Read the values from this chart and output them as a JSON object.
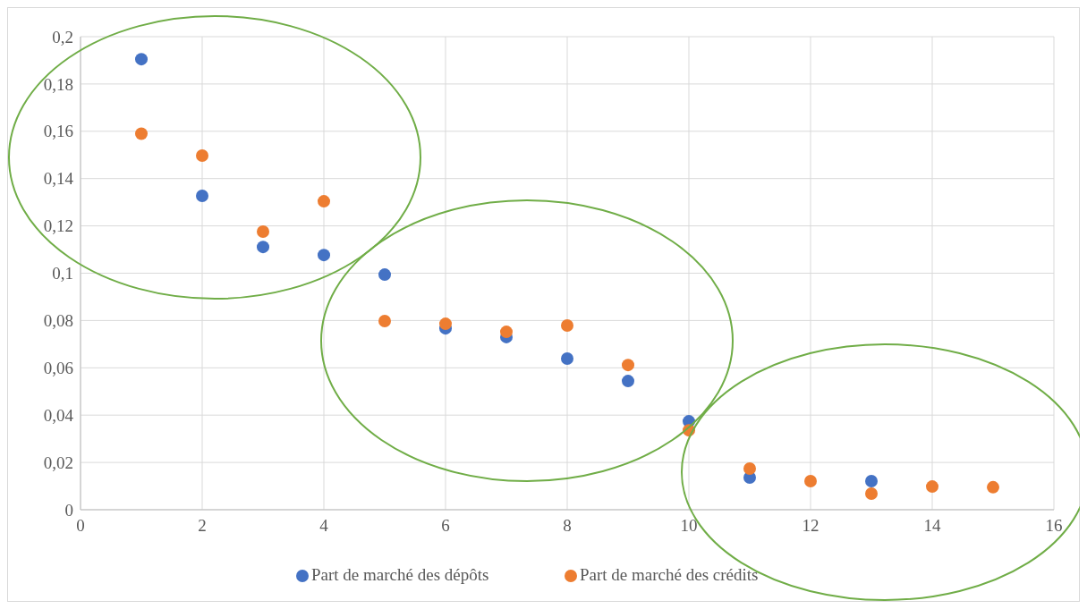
{
  "chart_data": {
    "type": "scatter",
    "x": [
      1,
      2,
      3,
      4,
      5,
      6,
      7,
      8,
      9,
      10,
      11,
      12,
      13,
      14,
      15
    ],
    "series": [
      {
        "name": "Part de marché des dépôts",
        "color": "#4472c4",
        "values": [
          0.1905,
          0.1327,
          0.1111,
          0.1077,
          0.0994,
          0.0767,
          0.073,
          0.0639,
          0.0544,
          0.0374,
          0.0136,
          null,
          0.0121,
          null,
          null
        ]
      },
      {
        "name": "Part de marché des crédits",
        "color": "#ed7d31",
        "values": [
          0.159,
          0.1497,
          0.1176,
          0.1304,
          0.0798,
          0.0786,
          0.0752,
          0.0779,
          0.0612,
          0.0336,
          0.0174,
          0.0121,
          0.0068,
          0.0098,
          0.0095
        ]
      }
    ],
    "xlim": [
      0,
      16
    ],
    "xticks": [
      0,
      2,
      4,
      6,
      8,
      10,
      12,
      14,
      16
    ],
    "ylim": [
      0,
      0.2
    ],
    "yticks": [
      0,
      {
        "value": 0.02,
        "label": "0,02"
      },
      {
        "value": 0.04,
        "label": "0,04"
      },
      {
        "value": 0.06,
        "label": "0,06"
      },
      {
        "value": 0.08,
        "label": "0,08"
      },
      {
        "value": 0.1,
        "label": "0,1"
      },
      {
        "value": 0.12,
        "label": "0,12"
      },
      {
        "value": 0.14,
        "label": "0,14"
      },
      {
        "value": 0.16,
        "label": "0,16"
      },
      {
        "value": 0.18,
        "label": "0,18"
      },
      {
        "value": 0.2,
        "label": "0,2"
      }
    ],
    "grid": true,
    "legend": "bottom",
    "marker": "circle"
  }
}
